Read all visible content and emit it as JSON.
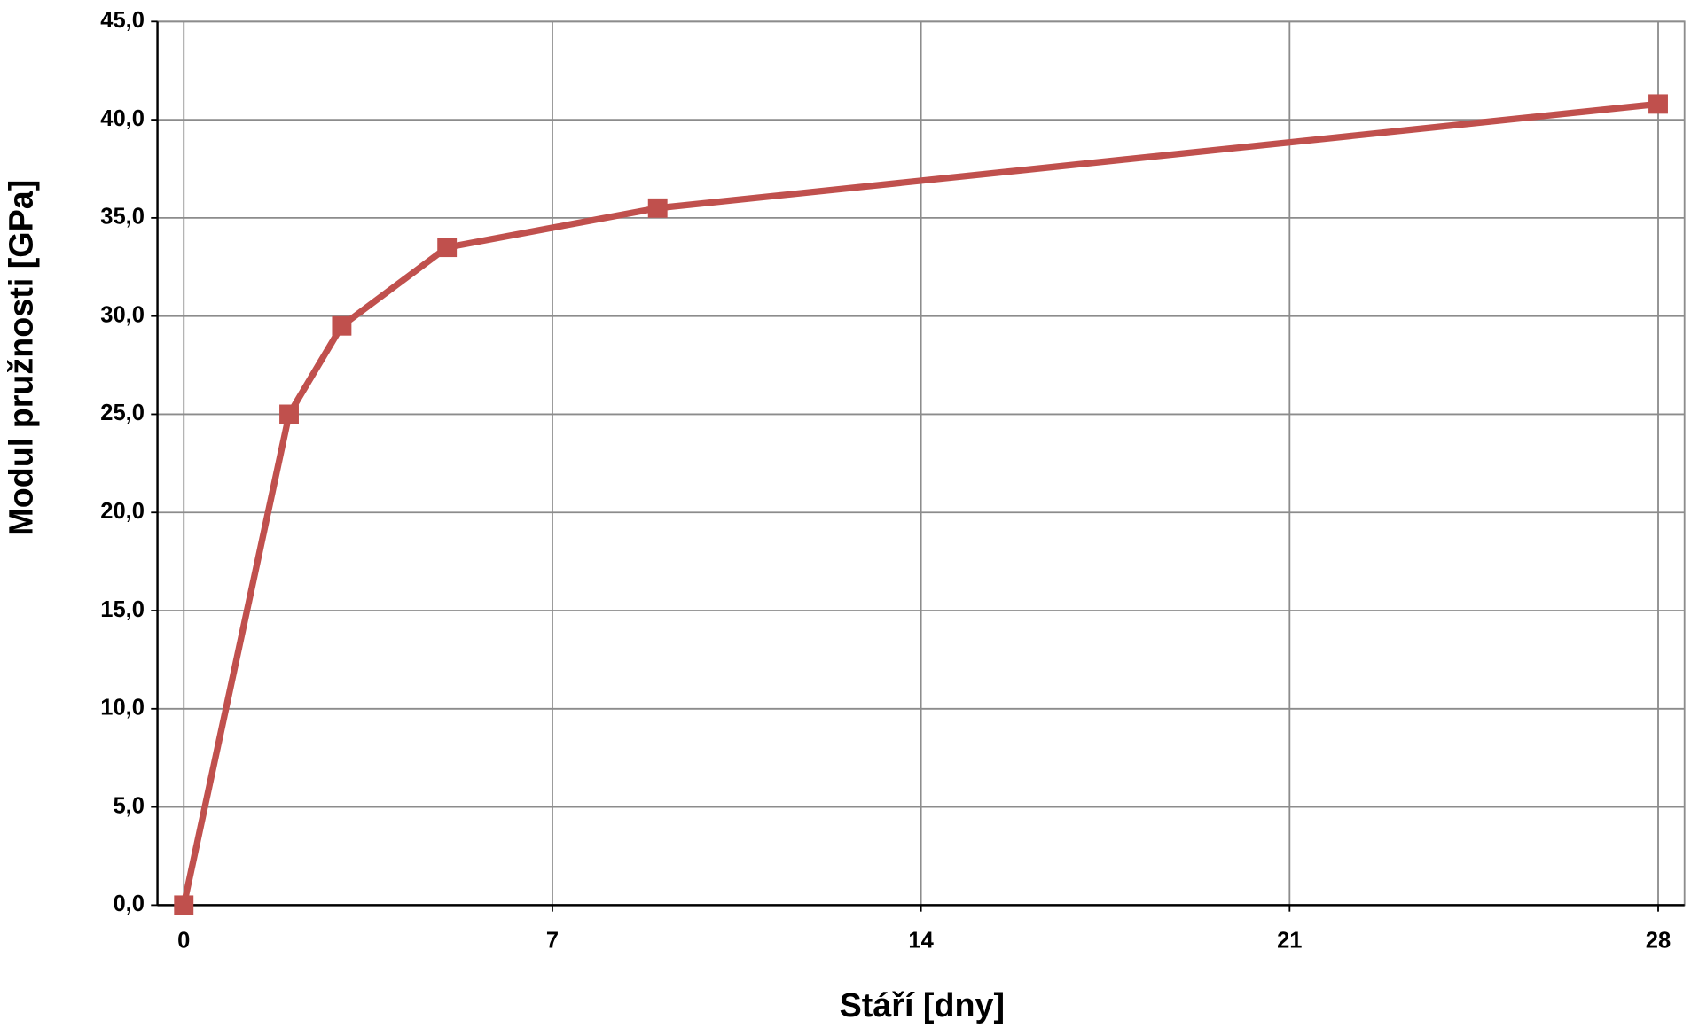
{
  "chart_data": {
    "type": "line",
    "xlabel": "Stáří [dny]",
    "ylabel": "Modul pružnosti [GPa]",
    "x": [
      0,
      2,
      3,
      5,
      9,
      28
    ],
    "series": [
      {
        "name": null,
        "color": "#c0504d",
        "values": [
          0,
          25,
          29.5,
          33.5,
          35.5,
          40.8
        ]
      }
    ],
    "xlim": [
      -0.5,
      28.5
    ],
    "xticks": [
      0,
      7,
      14,
      21,
      28
    ],
    "ylim": [
      0,
      45
    ],
    "yticks": [
      {
        "value": 0,
        "label": "0,0"
      },
      {
        "value": 5,
        "label": "5,0"
      },
      {
        "value": 10,
        "label": "10,0"
      },
      {
        "value": 15,
        "label": "15,0"
      },
      {
        "value": 20,
        "label": "20,0"
      },
      {
        "value": 25,
        "label": "25,0"
      },
      {
        "value": 30,
        "label": "30,0"
      },
      {
        "value": 35,
        "label": "35,0"
      },
      {
        "value": 40,
        "label": "40,0"
      },
      {
        "value": 45,
        "label": "45,0"
      }
    ],
    "grid": true
  }
}
